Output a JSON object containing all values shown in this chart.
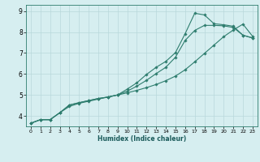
{
  "xlabel": "Humidex (Indice chaleur)",
  "background_color": "#d6eef0",
  "line_color": "#2e7d6e",
  "grid_color": "#b8d8db",
  "xlim": [
    -0.5,
    23.5
  ],
  "ylim": [
    3.5,
    9.3
  ],
  "xticks": [
    0,
    1,
    2,
    3,
    4,
    5,
    6,
    7,
    8,
    9,
    10,
    11,
    12,
    13,
    14,
    15,
    16,
    17,
    18,
    19,
    20,
    21,
    22,
    23
  ],
  "yticks": [
    4,
    5,
    6,
    7,
    8,
    9
  ],
  "series": [
    {
      "x": [
        0,
        1,
        2,
        3,
        4,
        5,
        6,
        7,
        8,
        9,
        10,
        11,
        12,
        13,
        14,
        15,
        16,
        17,
        18,
        19,
        20,
        21,
        22,
        23
      ],
      "y": [
        3.65,
        3.82,
        3.82,
        4.15,
        4.45,
        4.6,
        4.7,
        4.8,
        4.9,
        5.0,
        5.1,
        5.22,
        5.35,
        5.5,
        5.68,
        5.9,
        6.2,
        6.58,
        6.98,
        7.38,
        7.78,
        8.1,
        8.38,
        7.8
      ]
    },
    {
      "x": [
        0,
        1,
        2,
        3,
        4,
        5,
        6,
        7,
        8,
        9,
        10,
        11,
        12,
        13,
        14,
        15,
        16,
        17,
        18,
        19,
        20,
        21,
        22,
        23
      ],
      "y": [
        3.65,
        3.82,
        3.82,
        4.15,
        4.52,
        4.63,
        4.73,
        4.83,
        4.9,
        5.0,
        5.28,
        5.58,
        5.98,
        6.32,
        6.6,
        7.02,
        7.92,
        8.9,
        8.82,
        8.4,
        8.35,
        8.28,
        7.85,
        7.72
      ]
    },
    {
      "x": [
        0,
        1,
        2,
        3,
        4,
        5,
        6,
        7,
        8,
        9,
        10,
        11,
        12,
        13,
        14,
        15,
        16,
        17,
        18,
        19,
        20,
        21,
        22,
        23
      ],
      "y": [
        3.65,
        3.82,
        3.82,
        4.15,
        4.52,
        4.63,
        4.73,
        4.83,
        4.9,
        5.0,
        5.18,
        5.42,
        5.7,
        6.02,
        6.32,
        6.8,
        7.6,
        8.08,
        8.32,
        8.32,
        8.3,
        8.22,
        7.85,
        7.72
      ]
    }
  ]
}
